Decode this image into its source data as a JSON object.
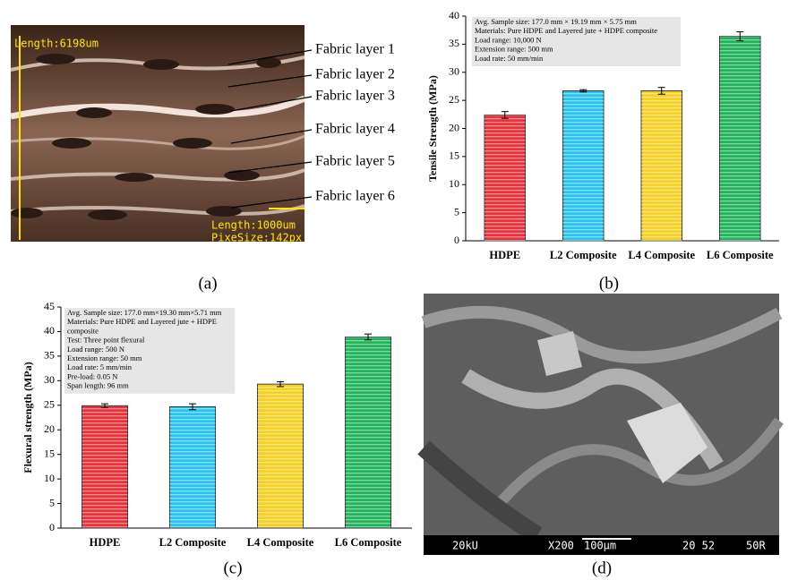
{
  "panel_labels": [
    "(a)",
    "(b)",
    "(c)",
    "(d)"
  ],
  "micrograph": {
    "scale_label": "Length:6198um",
    "scalebar_label": "Length:1000um",
    "pixel_label": "PixeSize:142px",
    "layers": [
      "Fabric layer 1",
      "Fabric layer 2",
      "Fabric layer 3",
      "Fabric layer 4",
      "Fabric layer 5",
      "Fabric layer 6"
    ]
  },
  "sem": {
    "info": [
      "20kU",
      "X200",
      "100µm",
      "20 52",
      "50R"
    ]
  },
  "chart_data": [
    {
      "type": "bar",
      "y_label": "Tensile Strength (MPa)",
      "annotation": [
        "Avg. Sample size: 177.0 mm × 19.19 mm × 5.75 mm",
        "Materials: Pure HDPE and Layered jute + HDPE composite",
        "Load range: 10,000 N",
        "Extension range: 500  mm",
        "Load rate: 50 mm/min"
      ],
      "categories": [
        "HDPE",
        "L2 Composite",
        "L4 Composite",
        "L6 Composite"
      ],
      "values": [
        22.4,
        26.7,
        26.7,
        36.4
      ],
      "errors": [
        0.6,
        0.2,
        0.6,
        0.8
      ],
      "colors": [
        "#e8323c",
        "#29c3f0",
        "#f5d020",
        "#1fb45a"
      ],
      "ylim": [
        0,
        40
      ],
      "yticks": [
        0,
        5,
        10,
        15,
        20,
        25,
        30,
        35,
        40
      ],
      "grid": false
    },
    {
      "type": "bar",
      "y_label": "Flexural strength (MPa)",
      "annotation": [
        "Avg. Sample size: 177.0 mm×19.30 mm×5.71 mm",
        "Materials: Pure HDPE and Layered jute + HDPE",
        "composite",
        "Test: Three point flexural",
        "Load range: 500 N",
        "Extension range: 50 mm",
        "Load rate: 5 mm/min",
        "Pre-load: 0.05 N",
        "Span length: 96 mm"
      ],
      "categories": [
        "HDPE",
        "L2 Composite",
        "L4 Composite",
        "L6 Composite"
      ],
      "values": [
        24.9,
        24.7,
        29.3,
        38.9
      ],
      "errors": [
        0.4,
        0.6,
        0.5,
        0.6
      ],
      "colors": [
        "#e8323c",
        "#29c3f0",
        "#f5d020",
        "#1fb45a"
      ],
      "ylim": [
        0,
        45
      ],
      "yticks": [
        0,
        5,
        10,
        15,
        20,
        25,
        30,
        35,
        40,
        45
      ],
      "grid": false
    }
  ]
}
